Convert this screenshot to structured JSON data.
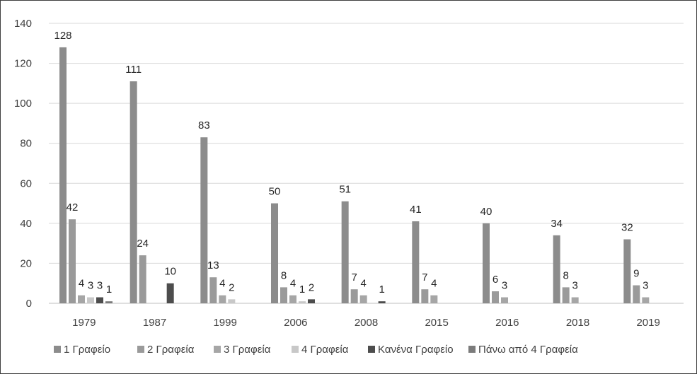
{
  "chart_data": {
    "type": "bar",
    "title": "",
    "xlabel": "",
    "ylabel": "",
    "ylim": [
      0,
      140
    ],
    "yticks": [
      0,
      20,
      40,
      60,
      80,
      100,
      120,
      140
    ],
    "grid": true,
    "legend_position": "bottom",
    "categories": [
      "1979",
      "1987",
      "1999",
      "2006",
      "2008",
      "2015",
      "2016",
      "2018",
      "2019"
    ],
    "series": [
      {
        "name": "1 Γραφείο",
        "color": "#8c8c8c",
        "values": [
          128,
          111,
          83,
          50,
          51,
          41,
          40,
          34,
          32
        ],
        "labels": [
          "128",
          "111",
          "83",
          "50",
          "51",
          "41",
          "40",
          "34",
          "32"
        ]
      },
      {
        "name": "2 Γραφεία",
        "color": "#9a9a9a",
        "values": [
          42,
          24,
          13,
          8,
          7,
          7,
          6,
          8,
          9
        ],
        "labels": [
          "42",
          "24",
          "13",
          "8",
          "7",
          "7",
          "6",
          "8",
          "9"
        ]
      },
      {
        "name": "3 Γραφεία",
        "color": "#a6a6a6",
        "values": [
          4,
          0,
          4,
          4,
          4,
          4,
          3,
          3,
          3
        ],
        "labels": [
          "4",
          "",
          "4",
          "4",
          "4",
          "4",
          "3",
          "3",
          "3"
        ]
      },
      {
        "name": "4 Γραφεία",
        "color": "#c8c8c8",
        "values": [
          3,
          0,
          2,
          1,
          0,
          0,
          0,
          0,
          0
        ],
        "labels": [
          "3",
          "",
          "2",
          "1",
          "",
          "",
          "",
          "",
          ""
        ]
      },
      {
        "name": "Κανένα Γραφείο",
        "color": "#4d4d4d",
        "values": [
          3,
          10,
          0,
          2,
          1,
          0,
          0,
          0,
          0
        ],
        "labels": [
          "3",
          "10",
          "",
          "2",
          "1",
          "",
          "",
          "",
          ""
        ]
      },
      {
        "name": "Πάνω από 4 Γραφεία",
        "color": "#7b7b7b",
        "values": [
          1,
          0,
          0,
          0,
          0,
          0,
          0,
          0,
          0
        ],
        "labels": [
          "1",
          "",
          "",
          "",
          "",
          "",
          "",
          "",
          ""
        ]
      }
    ]
  }
}
